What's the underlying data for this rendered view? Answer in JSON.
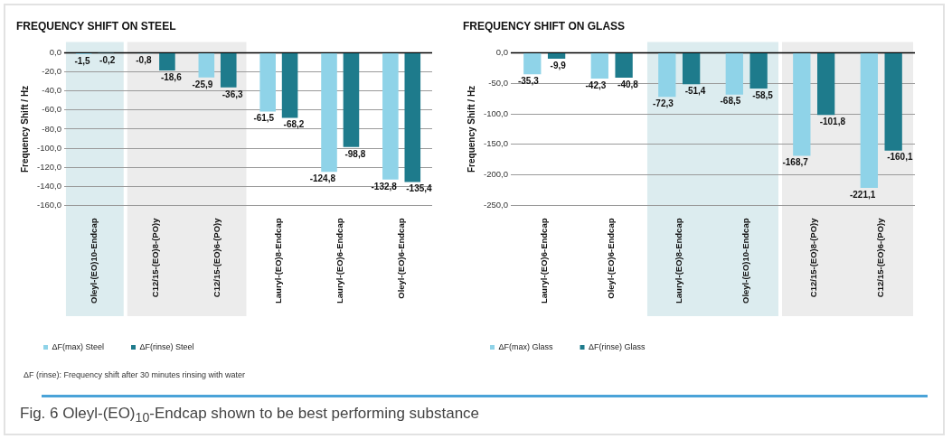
{
  "chart_data": [
    {
      "type": "bar",
      "title": "FREQUENCY SHIFT ON STEEL",
      "ylabel": "Frequency Shift / Hz",
      "categories": [
        "Oleyl-(EO)10-Endcap",
        "C12/15-(EO)8-(PO)y",
        "C12/15-(EO)6-(PO)y",
        "Lauryl-(EO)8-Endcap",
        "Lauryl-(EO)6-Endcap",
        "Oleyl-(EO)6-Endcap"
      ],
      "series": [
        {
          "name": "ΔF(max) Steel",
          "color": "#8fd3e8",
          "values": [
            -1.5,
            -0.8,
            -25.9,
            -61.5,
            -124.8,
            -132.8
          ],
          "value_labels": [
            "-1,5",
            "-0,8",
            "-25,9",
            "-61,5",
            "-124,8",
            "-132,8"
          ]
        },
        {
          "name": "ΔF(rinse) Steel",
          "color": "#1e7b8c",
          "values": [
            -0.2,
            -18.6,
            -36.3,
            -68.2,
            -98.8,
            -135.4
          ],
          "value_labels": [
            "-0,2",
            "-18,6",
            "-36,3",
            "-68,2",
            "-98,8",
            "-135,4"
          ]
        }
      ],
      "ylim": [
        -160,
        0
      ],
      "yticks": [
        {
          "value": 0,
          "label": "0,0"
        },
        {
          "value": -20,
          "label": "-20,0"
        },
        {
          "value": -40,
          "label": "-40,0"
        },
        {
          "value": -60,
          "label": "-60,0"
        },
        {
          "value": -80,
          "label": "-80,0"
        },
        {
          "value": -100,
          "label": "-100,0"
        },
        {
          "value": -120,
          "label": "-120,0"
        },
        {
          "value": -140,
          "label": "-140,0"
        },
        {
          "value": -160,
          "label": "-160,0"
        }
      ],
      "bands": [
        {
          "axis": "x",
          "from": "Oleyl-(EO)10-Endcap",
          "to": "Oleyl-(EO)10-Endcap",
          "color": "#dcecef"
        },
        {
          "axis": "x",
          "from": "C12/15-(EO)8-(PO)y",
          "to": "C12/15-(EO)6-(PO)y",
          "color": "#ececec"
        }
      ],
      "grid": "y",
      "legend": "bottom left",
      "annotations": [
        "ΔF (rinse): Frequency shift after 30 minutes rinsing with water",
        "Fig. 6 Oleyl-(EO)$_{10}$-Endcap shown to be best performing substance"
      ]
    },
    {
      "type": "bar",
      "title": "FREQUENCY SHIFT ON GLASS",
      "ylabel": "Frequency Shift / Hz",
      "categories": [
        "Lauryl-(EO)6-Endcap",
        "Oleyl-(EO)6-Endcap",
        "Lauryl-(EO)8-Endcap",
        "Oleyl-(EO)10-Endcap",
        "C12/15-(EO)8-(PO)y",
        "C12/15-(EO)6-(PO)y"
      ],
      "series": [
        {
          "name": "ΔF(max) Glass",
          "color": "#8fd3e8",
          "values": [
            -35.3,
            -42.3,
            -72.3,
            -68.5,
            -168.7,
            -221.1
          ],
          "value_labels": [
            "-35,3",
            "-42,3",
            "-72,3",
            "-68,5",
            "-168,7",
            "-221,1"
          ]
        },
        {
          "name": "ΔF(rinse) Glass",
          "color": "#1e7b8c",
          "values": [
            -9.9,
            -40.8,
            -51.4,
            -58.5,
            -101.8,
            -160.1
          ],
          "value_labels": [
            "-9,9",
            "-40,8",
            "-51,4",
            "-58,5",
            "-101,8",
            "-160,1"
          ]
        }
      ],
      "ylim": [
        -250,
        0
      ],
      "yticks": [
        {
          "value": 0,
          "label": "0,0"
        },
        {
          "value": -50,
          "label": "-50,0"
        },
        {
          "value": -100,
          "label": "-100,0"
        },
        {
          "value": -150,
          "label": "-150,0"
        },
        {
          "value": -200,
          "label": "-200,0"
        },
        {
          "value": -250,
          "label": "-250,0"
        }
      ],
      "bands": [
        {
          "axis": "x",
          "from": "Lauryl-(EO)8-Endcap",
          "to": "Oleyl-(EO)10-Endcap",
          "color": "#dcecef"
        },
        {
          "axis": "x",
          "from": "C12/15-(EO)8-(PO)y",
          "to": "C12/15-(EO)6-(PO)y",
          "color": "#ececec"
        }
      ],
      "grid": "y",
      "legend": "bottom left"
    }
  ]
}
